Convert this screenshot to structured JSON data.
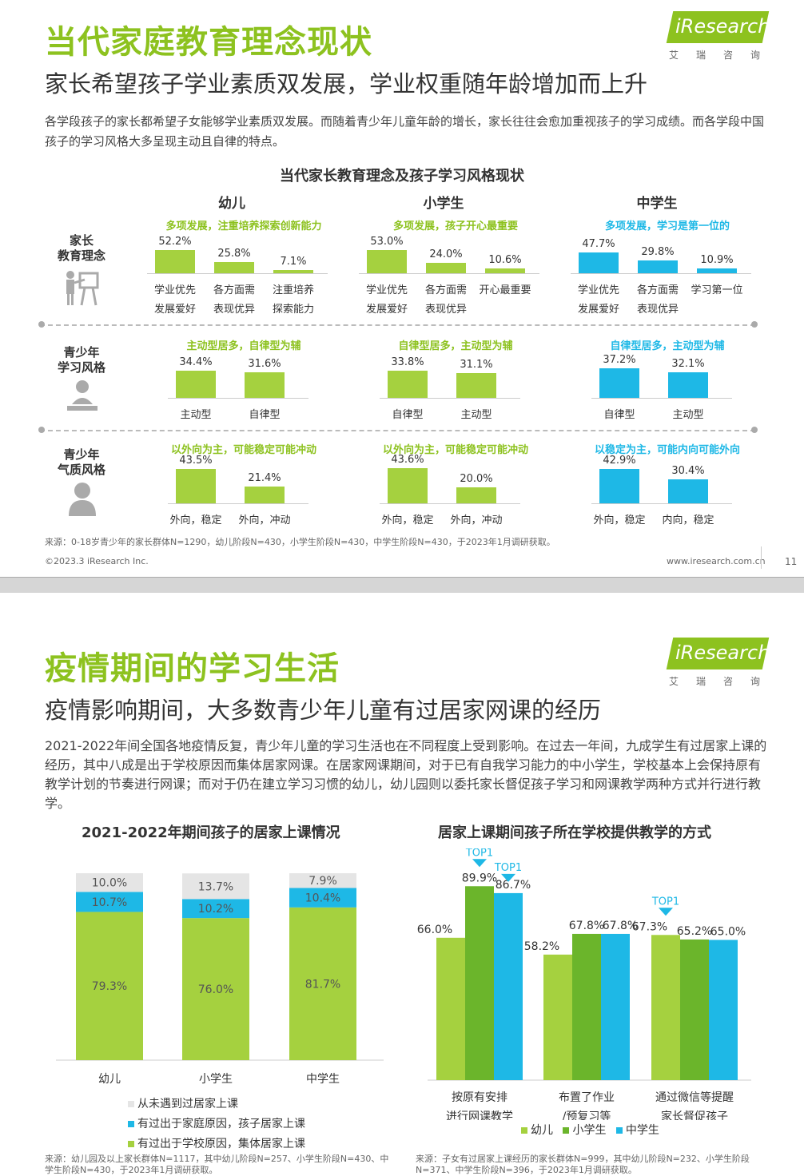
{
  "colors": {
    "green": "#8dc21f",
    "blue": "#1eb8e6",
    "light_green": "#a5d13f",
    "gray": "#e5e5e5"
  },
  "slide1": {
    "title": "当代家庭教育理念现状",
    "subtitle": "家长希望孩子学业素质双发展，学业权重随年龄增加而上升",
    "para": "各学段孩子的家长都希望子女能够学业素质双发展。而随着青少年儿童年龄的增长，家长往往会愈加重视孩子的学习成绩。而各学段中国孩子的学习风格大多呈现主动且自律的特点。",
    "logo": "iResearch",
    "logo_cn": "艾瑞咨询",
    "chart_title": "当代家长教育理念及孩子学习风格现状",
    "columns": [
      "幼儿",
      "小学生",
      "中学生"
    ],
    "row_labels": [
      [
        "家长",
        "教育理念"
      ],
      [
        "青少年",
        "学习风格"
      ],
      [
        "青少年",
        "气质风格"
      ]
    ],
    "row_icons": [
      "teacher-icon",
      "student-icon",
      "person-icon"
    ],
    "source": "来源：0-18岁青少年的家长群体N=1290，幼儿阶段N=430，小学生阶段N=430，中学生阶段N=430，于2023年1月调研获取。",
    "copyright": "©2023.3 iResearch Inc.",
    "website": "www.iresearch.com.cn",
    "page": "11"
  },
  "chart_data": [
    {
      "type": "bar",
      "title": "当代家长教育理念及孩子学习风格现状",
      "panels": [
        {
          "row": 0,
          "col": 0,
          "header": "多项发展，注重培养探索创新能力",
          "categories": [
            [
              "学业优先",
              "发展爱好"
            ],
            [
              "各方面需",
              "表现优异"
            ],
            [
              "注重培养",
              "探索能力"
            ]
          ],
          "values": [
            52.2,
            25.8,
            7.1
          ],
          "labels": [
            "52.2%",
            "25.8%",
            "7.1%"
          ]
        },
        {
          "row": 0,
          "col": 1,
          "header": "多项发展，孩子开心最重要",
          "categories": [
            [
              "学业优先",
              "发展爱好"
            ],
            [
              "各方面需",
              "表现优异"
            ],
            [
              "开心最重要",
              ""
            ]
          ],
          "values": [
            53.0,
            24.0,
            10.6
          ],
          "labels": [
            "53.0%",
            "24.0%",
            "10.6%"
          ]
        },
        {
          "row": 0,
          "col": 2,
          "header": "多项发展，学习是第一位的",
          "categories": [
            [
              "学业优先",
              "发展爱好"
            ],
            [
              "各方面需",
              "表现优异"
            ],
            [
              "学习第一位",
              ""
            ]
          ],
          "values": [
            47.7,
            29.8,
            10.9
          ],
          "labels": [
            "47.7%",
            "29.8%",
            "10.9%"
          ]
        },
        {
          "row": 1,
          "col": 0,
          "header": "主动型居多，自律型为辅",
          "categories": [
            [
              "主动型"
            ],
            [
              "自律型"
            ]
          ],
          "values": [
            34.4,
            31.6
          ],
          "labels": [
            "34.4%",
            "31.6%"
          ]
        },
        {
          "row": 1,
          "col": 1,
          "header": "自律型居多，主动型为辅",
          "categories": [
            [
              "自律型"
            ],
            [
              "主动型"
            ]
          ],
          "values": [
            33.8,
            31.1
          ],
          "labels": [
            "33.8%",
            "31.1%"
          ]
        },
        {
          "row": 1,
          "col": 2,
          "header": "自律型居多，主动型为辅",
          "categories": [
            [
              "自律型"
            ],
            [
              "主动型"
            ]
          ],
          "values": [
            37.2,
            32.1
          ],
          "labels": [
            "37.2%",
            "32.1%"
          ]
        },
        {
          "row": 2,
          "col": 0,
          "header": "以外向为主，可能稳定可能冲动",
          "categories": [
            [
              "外向，稳定"
            ],
            [
              "外向，冲动"
            ]
          ],
          "values": [
            43.5,
            21.4
          ],
          "labels": [
            "43.5%",
            "21.4%"
          ]
        },
        {
          "row": 2,
          "col": 1,
          "header": "以外向为主，可能稳定可能冲动",
          "categories": [
            [
              "外向，稳定"
            ],
            [
              "外向，冲动"
            ]
          ],
          "values": [
            43.6,
            20.0
          ],
          "labels": [
            "43.6%",
            "20.0%"
          ]
        },
        {
          "row": 2,
          "col": 2,
          "header": "以稳定为主，可能内向可能外向",
          "categories": [
            [
              "外向，稳定"
            ],
            [
              "内向，稳定"
            ]
          ],
          "values": [
            42.9,
            30.4
          ],
          "labels": [
            "42.9%",
            "30.4%"
          ]
        }
      ]
    },
    {
      "type": "bar",
      "stacked": true,
      "title": "2021-2022年期间孩子的居家上课情况",
      "categories": [
        "幼儿",
        "小学生",
        "中学生"
      ],
      "series": [
        {
          "name": "有过出于学校原因，集体居家上课",
          "values": [
            79.3,
            76.0,
            81.7
          ],
          "labels": [
            "79.3%",
            "76.0%",
            "81.7%"
          ],
          "color": "#a5d13f"
        },
        {
          "name": "有过出于家庭原因，孩子居家上课",
          "values": [
            10.7,
            10.2,
            10.4
          ],
          "labels": [
            "10.7%",
            "10.2%",
            "10.4%"
          ],
          "color": "#1eb8e6"
        },
        {
          "name": "从未遇到过居家上课",
          "values": [
            10.0,
            13.7,
            7.9
          ],
          "labels": [
            "10.0%",
            "13.7%",
            "7.9%"
          ],
          "color": "#e5e5e5"
        }
      ],
      "ylim": [
        0,
        100
      ]
    },
    {
      "type": "bar",
      "title": "居家上课期间孩子所在学校提供教学的方式",
      "categories": [
        [
          "按原有安排",
          "进行网课教学"
        ],
        [
          "布置了作业",
          "/预复习等"
        ],
        [
          "通过微信等提醒",
          "家长督促孩子"
        ]
      ],
      "series": [
        {
          "name": "幼儿",
          "values": [
            66.0,
            58.2,
            67.3
          ],
          "labels": [
            "66.0%",
            "58.2%",
            "67.3%"
          ],
          "color": "#a5d13f"
        },
        {
          "name": "小学生",
          "values": [
            89.9,
            67.8,
            65.2
          ],
          "labels": [
            "89.9%",
            "67.8%",
            "65.2%"
          ],
          "color": "#6bb52b"
        },
        {
          "name": "中学生",
          "values": [
            86.7,
            67.8,
            65.0
          ],
          "labels": [
            "86.7%",
            "67.8%",
            "65.0%"
          ],
          "color": "#1eb8e6"
        }
      ],
      "top_marks": [
        {
          "category": 0,
          "series": 1,
          "text": "TOP1"
        },
        {
          "category": 0,
          "series": 2,
          "text": "TOP1"
        },
        {
          "category": 2,
          "series": 0,
          "text": "TOP1"
        }
      ],
      "ylim": [
        0,
        100
      ]
    }
  ],
  "slide2": {
    "title": "疫情期间的学习生活",
    "subtitle": "疫情影响期间，大多数青少年儿童有过居家网课的经历",
    "para": "2021-2022年间全国各地疫情反复，青少年儿童的学习生活也在不同程度上受到影响。在过去一年间，九成学生有过居家上课的经历，其中八成是出于学校原因而集体居家网课。在居家网课期间，对于已有自我学习能力的中小学生，学校基本上会保持原有教学计划的节奏进行网课；而对于仍在建立学习习惯的幼儿，幼儿园则以委托家长督促孩子学习和网课教学两种方式并行进行教学。",
    "logo": "iResearch",
    "logo_cn": "艾瑞咨询",
    "left_legend": [
      "从未遇到过居家上课",
      "有过出于家庭原因，孩子居家上课",
      "有过出于学校原因，集体居家上课"
    ],
    "right_legend": [
      "幼儿",
      "小学生",
      "中学生"
    ],
    "left_source": "来源：幼儿园及以上家长群体N=1117，其中幼儿阶段N=257、小学生阶段N=430、中学生阶段N=430，于2023年1月调研获取。",
    "right_source": "来源：子女有过居家上课经历的家长群体N=999，其中幼儿阶段N=232、小学生阶段N=371、中学生阶段N=396，于2023年1月调研获取。"
  }
}
